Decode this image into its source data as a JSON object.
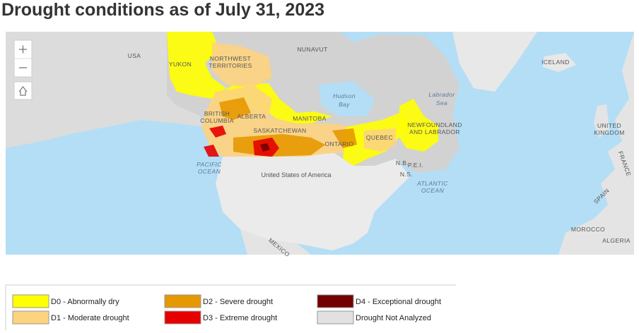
{
  "title": "Drought conditions as of July 31, 2023",
  "map_labels": [
    "USA",
    "YUKON",
    "NORTHWEST",
    "TERRITORIES",
    "NUNAVUT",
    "ICELAND",
    "Hudson",
    "Bay",
    "Labrador",
    "Sea",
    "BRITISH",
    "COLUMBIA",
    "ALBERTA",
    "MANITOBA",
    "SASKATCHEWAN",
    "NEWFOUNDLAND",
    "AND LABRADOR",
    "UNITED",
    "KINGDOM",
    "PACIFIC",
    "OCEAN",
    "ONTARIO",
    "QUEBEC",
    "N.B.",
    "P.E.I.",
    "N.S.",
    "ATLANTIC",
    "OCEAN",
    "United States of America",
    "FRANCE",
    "SPAIN",
    "MOROCCO",
    "ALGERIA",
    "MEXICO"
  ],
  "legend": [
    {
      "label": "D0 - Abnormally dry",
      "color": "#ffff00"
    },
    {
      "label": "D1 - Moderate drought",
      "color": "#fcd37f"
    },
    {
      "label": "D2 - Severe drought",
      "color": "#e69800"
    },
    {
      "label": "D3 - Extreme drought",
      "color": "#e60000"
    },
    {
      "label": "D4 - Exceptional drought",
      "color": "#730000"
    },
    {
      "label": "Drought Not Analyzed",
      "color": "#e1e1e1"
    }
  ]
}
